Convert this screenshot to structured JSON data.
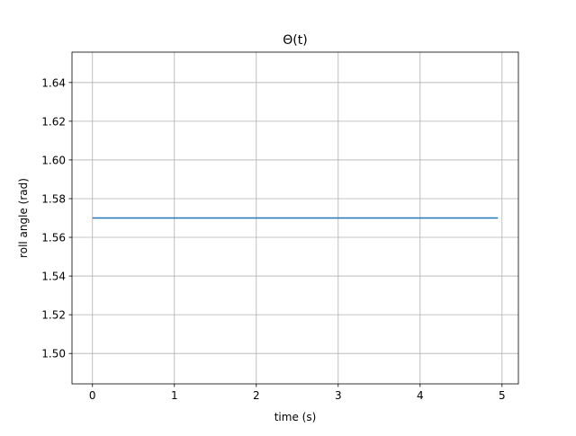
{
  "chart_data": {
    "type": "line",
    "title": "Θ(t)",
    "xlabel": "time (s)",
    "ylabel": "roll angle (rad)",
    "xlim": [
      -0.25,
      5.2
    ],
    "ylim": [
      1.4843,
      1.6557
    ],
    "grid": true,
    "xticks": [
      0,
      1,
      2,
      3,
      4,
      5
    ],
    "xtick_labels": [
      "0",
      "1",
      "2",
      "3",
      "4",
      "5"
    ],
    "yticks": [
      1.5,
      1.52,
      1.54,
      1.56,
      1.58,
      1.6,
      1.62,
      1.64
    ],
    "ytick_labels": [
      "1.50",
      "1.52",
      "1.54",
      "1.56",
      "1.58",
      "1.60",
      "1.62",
      "1.64"
    ],
    "series": [
      {
        "color": "#1f77b4",
        "x": [
          0,
          4.95
        ],
        "y": [
          1.57,
          1.57
        ]
      }
    ]
  }
}
